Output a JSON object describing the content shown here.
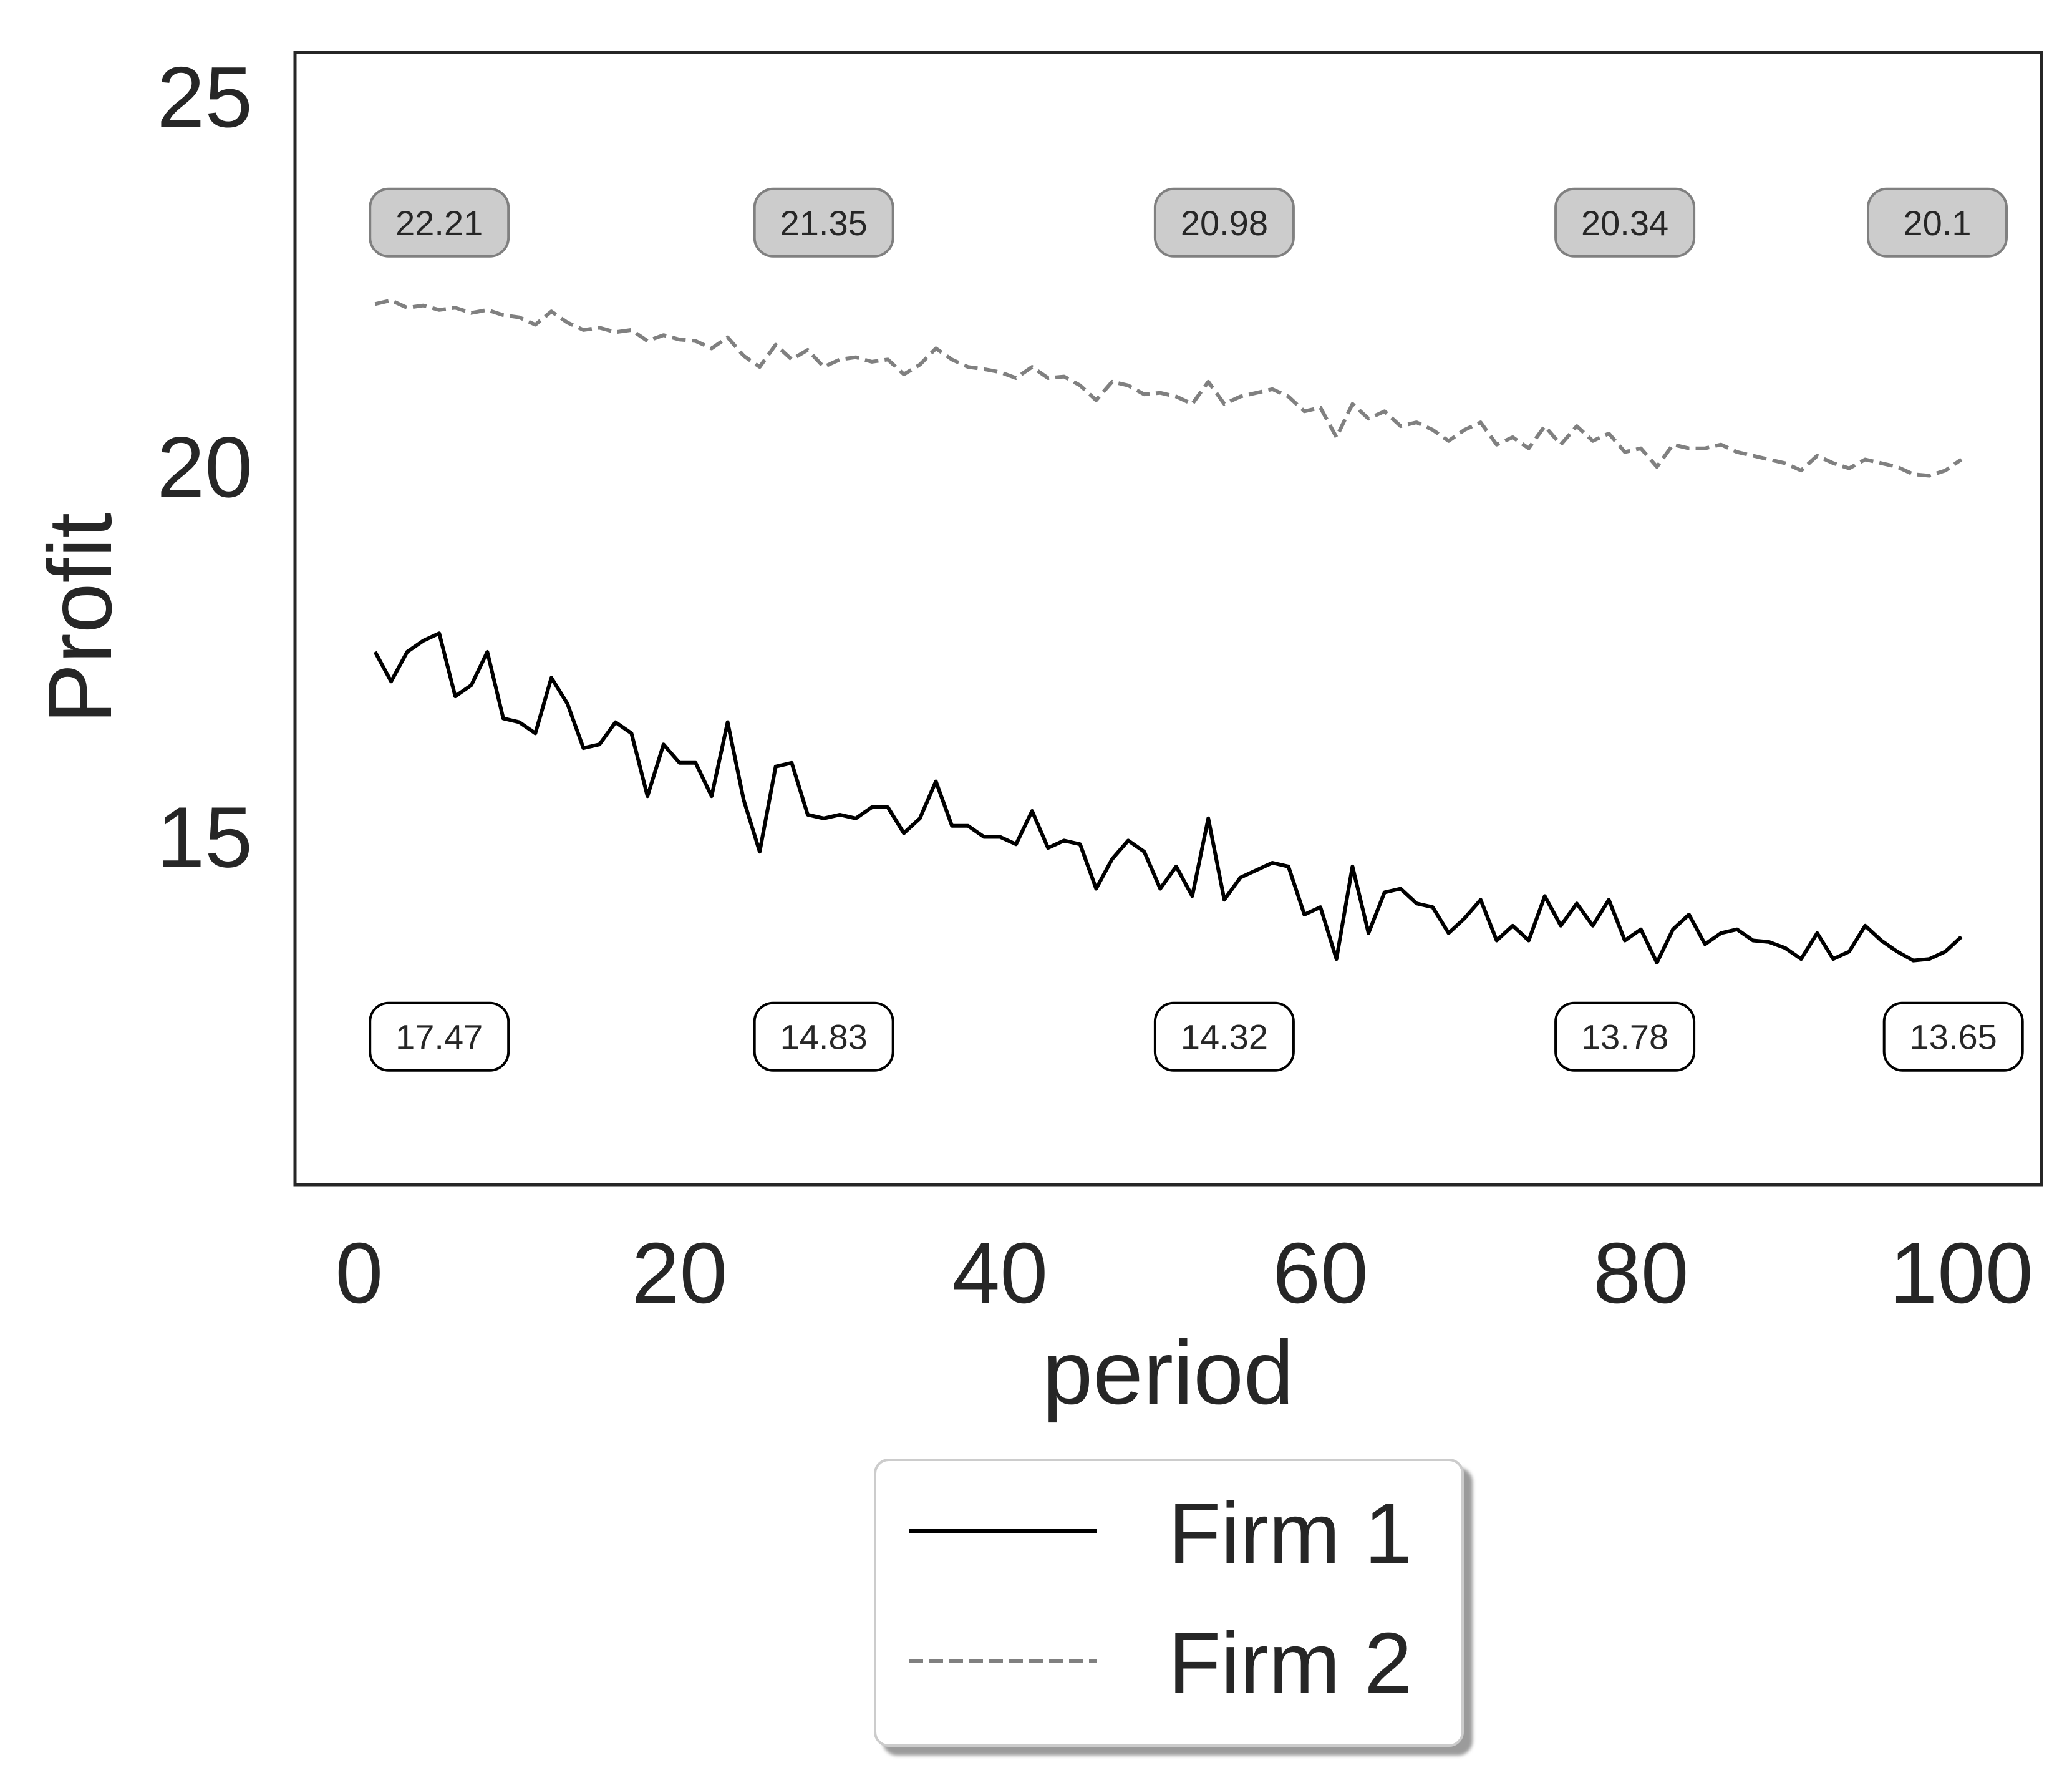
{
  "chart_data": {
    "type": "line",
    "title": "",
    "xlabel": "period",
    "ylabel": "Profit",
    "xlim": [
      -4,
      105
    ],
    "ylim": [
      10.3,
      25.6
    ],
    "xticks": [
      "0",
      "20",
      "40",
      "60",
      "80",
      "100"
    ],
    "yticks": [
      "15",
      "20",
      "25"
    ],
    "grid": false,
    "legend": {
      "placement": "bottom-center",
      "shadow": true
    },
    "x": [
      1,
      2,
      3,
      4,
      5,
      6,
      7,
      8,
      9,
      10,
      11,
      12,
      13,
      14,
      15,
      16,
      17,
      18,
      19,
      20,
      21,
      22,
      23,
      24,
      25,
      26,
      27,
      28,
      29,
      30,
      31,
      32,
      33,
      34,
      35,
      36,
      37,
      38,
      39,
      40,
      41,
      42,
      43,
      44,
      45,
      46,
      47,
      48,
      49,
      50,
      51,
      52,
      53,
      54,
      55,
      56,
      57,
      58,
      59,
      60,
      61,
      62,
      63,
      64,
      65,
      66,
      67,
      68,
      69,
      70,
      71,
      72,
      73,
      74,
      75,
      76,
      77,
      78,
      79,
      80,
      81,
      82,
      83,
      84,
      85,
      86,
      87,
      88,
      89,
      90,
      91,
      92,
      93,
      94,
      95,
      96,
      97,
      98,
      99,
      100
    ],
    "series": [
      {
        "name": "Firm 1",
        "color": "#000000",
        "style": "solid",
        "values": [
          17.5,
          17.1,
          17.5,
          17.65,
          17.75,
          16.9,
          17.05,
          17.5,
          16.6,
          16.55,
          16.4,
          17.15,
          16.8,
          16.2,
          16.25,
          16.55,
          16.4,
          15.55,
          16.25,
          16.0,
          16.0,
          15.55,
          16.55,
          15.5,
          14.8,
          15.95,
          16.0,
          15.3,
          15.25,
          15.3,
          15.25,
          15.4,
          15.4,
          15.05,
          15.25,
          15.75,
          15.15,
          15.15,
          15.0,
          15.0,
          14.9,
          15.35,
          14.85,
          14.95,
          14.9,
          14.3,
          14.7,
          14.95,
          14.8,
          14.3,
          14.6,
          14.2,
          15.25,
          14.15,
          14.45,
          14.55,
          14.65,
          14.6,
          13.95,
          14.05,
          13.35,
          14.6,
          13.7,
          14.25,
          14.3,
          14.1,
          14.05,
          13.7,
          13.9,
          14.15,
          13.6,
          13.8,
          13.6,
          14.2,
          13.8,
          14.1,
          13.8,
          14.15,
          13.6,
          13.75,
          13.3,
          13.75,
          13.95,
          13.55,
          13.7,
          13.75,
          13.6,
          13.58,
          13.5,
          13.35,
          13.7,
          13.35,
          13.45,
          13.8,
          13.6,
          13.45,
          13.33,
          13.35,
          13.45,
          13.65
        ]
      },
      {
        "name": "Firm 2",
        "color": "#808080",
        "style": "dashed",
        "values": [
          22.2,
          22.25,
          22.15,
          22.18,
          22.12,
          22.15,
          22.08,
          22.12,
          22.05,
          22.02,
          21.92,
          22.1,
          21.95,
          21.85,
          21.88,
          21.82,
          21.85,
          21.7,
          21.78,
          21.72,
          21.7,
          21.6,
          21.75,
          21.5,
          21.35,
          21.65,
          21.45,
          21.58,
          21.35,
          21.45,
          21.48,
          21.42,
          21.45,
          21.25,
          21.38,
          21.6,
          21.45,
          21.35,
          21.32,
          21.28,
          21.2,
          21.35,
          21.2,
          21.22,
          21.1,
          20.9,
          21.15,
          21.1,
          20.98,
          21.0,
          20.95,
          20.85,
          21.15,
          20.85,
          20.95,
          21.0,
          21.05,
          20.95,
          20.75,
          20.8,
          20.4,
          20.85,
          20.65,
          20.75,
          20.55,
          20.6,
          20.5,
          20.35,
          20.5,
          20.6,
          20.3,
          20.4,
          20.25,
          20.55,
          20.3,
          20.55,
          20.35,
          20.45,
          20.2,
          20.25,
          20.0,
          20.3,
          20.25,
          20.25,
          20.3,
          20.2,
          20.15,
          20.1,
          20.05,
          19.95,
          20.15,
          20.05,
          19.98,
          20.1,
          20.05,
          20.0,
          19.9,
          19.88,
          19.95,
          20.1
        ]
      }
    ],
    "annotations": [
      {
        "series": "Firm 2",
        "x": 5,
        "y": 23.3,
        "text": "22.21"
      },
      {
        "series": "Firm 2",
        "x": 29,
        "y": 23.3,
        "text": "21.35"
      },
      {
        "series": "Firm 2",
        "x": 54,
        "y": 23.3,
        "text": "20.98"
      },
      {
        "series": "Firm 2",
        "x": 79,
        "y": 23.3,
        "text": "20.34"
      },
      {
        "series": "Firm 2",
        "x": 98.5,
        "y": 23.3,
        "text": "20.1"
      },
      {
        "series": "Firm 1",
        "x": 5,
        "y": 12.3,
        "text": "17.47"
      },
      {
        "series": "Firm 1",
        "x": 29,
        "y": 12.3,
        "text": "14.83"
      },
      {
        "series": "Firm 1",
        "x": 54,
        "y": 12.3,
        "text": "14.32"
      },
      {
        "series": "Firm 1",
        "x": 79,
        "y": 12.3,
        "text": "13.78"
      },
      {
        "series": "Firm 1",
        "x": 99.5,
        "y": 12.3,
        "text": "13.65"
      }
    ]
  }
}
